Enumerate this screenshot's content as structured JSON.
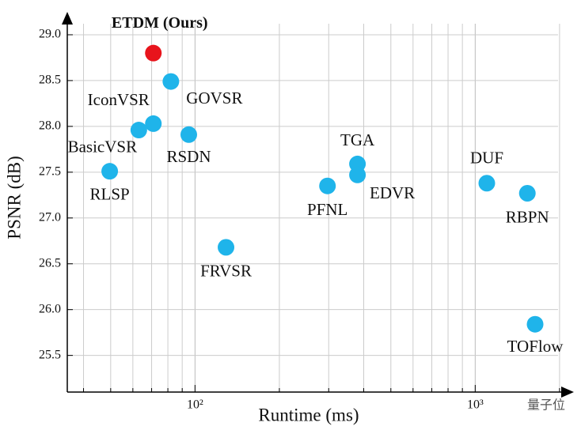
{
  "chart_data": {
    "type": "scatter",
    "xlabel": "Runtime (ms)",
    "ylabel": "PSNR (dB)",
    "xscale": "log",
    "grid": true,
    "xlim": [
      35,
      2250
    ],
    "ylim": [
      25.1,
      29.25
    ],
    "xticks": [
      {
        "value": 100,
        "label": "10²"
      },
      {
        "value": 1000,
        "label": "10³"
      }
    ],
    "xminorticks": [
      40,
      50,
      60,
      70,
      80,
      90,
      200,
      300,
      400,
      500,
      600,
      700,
      800,
      900,
      2000
    ],
    "yticks": [
      25.5,
      {
        "value": 26,
        "label": "26.0"
      },
      26.5,
      {
        "value": 27,
        "label": "27.0"
      },
      27.5,
      {
        "value": 28,
        "label": "28.0"
      },
      28.5,
      {
        "value": 29,
        "label": "29.0"
      }
    ],
    "points": [
      {
        "name": "ETDM (Ours)",
        "x": 71,
        "y": 28.8,
        "color": "#e8141c"
      },
      {
        "name": "GOVSR",
        "x": 82,
        "y": 28.49,
        "color": "#1fb4ea"
      },
      {
        "name": "IconVSR",
        "x": 71,
        "y": 28.03,
        "color": "#1fb4ea"
      },
      {
        "name": "BasicVSR",
        "x": 63,
        "y": 27.96,
        "color": "#1fb4ea"
      },
      {
        "name": "RSDN",
        "x": 95,
        "y": 27.91,
        "color": "#1fb4ea"
      },
      {
        "name": "RLSP",
        "x": 49.6,
        "y": 27.51,
        "color": "#1fb4ea"
      },
      {
        "name": "FRVSR",
        "x": 129,
        "y": 26.68,
        "color": "#1fb4ea"
      },
      {
        "name": "PFNL",
        "x": 297,
        "y": 27.35,
        "color": "#1fb4ea"
      },
      {
        "name": "TGA",
        "x": 380,
        "y": 27.59,
        "color": "#1fb4ea"
      },
      {
        "name": "EDVR",
        "x": 380,
        "y": 27.47,
        "color": "#1fb4ea"
      },
      {
        "name": "DUF",
        "x": 1100,
        "y": 27.38,
        "color": "#1fb4ea"
      },
      {
        "name": "RBPN",
        "x": 1535,
        "y": 27.27,
        "color": "#1fb4ea"
      },
      {
        "name": "TOFlow",
        "x": 1636,
        "y": 25.84,
        "color": "#1fb4ea"
      }
    ],
    "watermark": "量子位"
  }
}
